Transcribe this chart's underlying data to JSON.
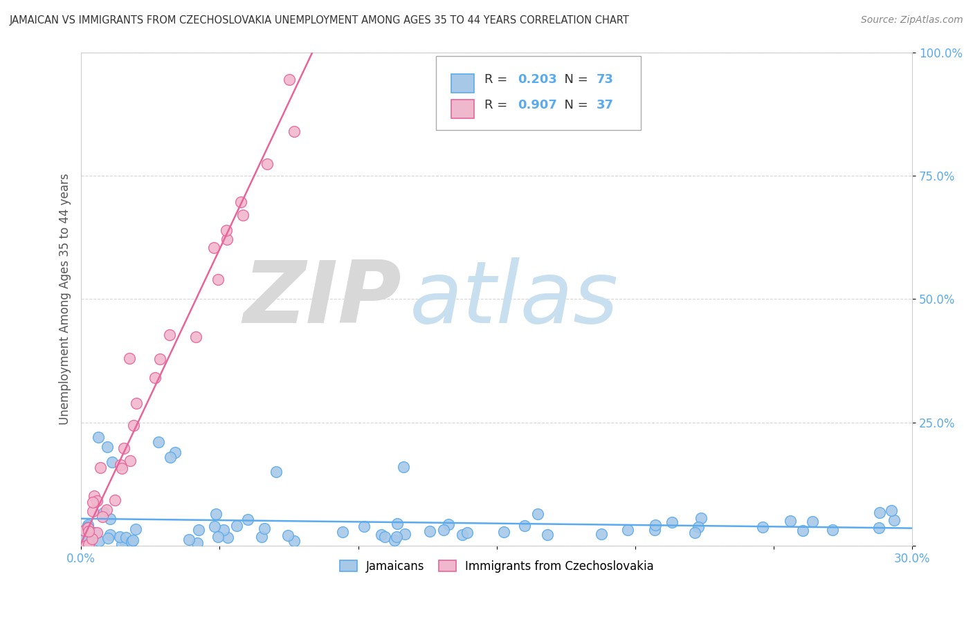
{
  "title": "JAMAICAN VS IMMIGRANTS FROM CZECHOSLOVAKIA UNEMPLOYMENT AMONG AGES 35 TO 44 YEARS CORRELATION CHART",
  "source": "Source: ZipAtlas.com",
  "ylabel": "Unemployment Among Ages 35 to 44 years",
  "x_min": 0.0,
  "x_max": 0.3,
  "y_min": 0.0,
  "y_max": 1.0,
  "jamaicans_R": 0.203,
  "jamaicans_N": 73,
  "czech_R": 0.907,
  "czech_N": 37,
  "jamaicans_marker_color": "#a8c8e8",
  "jamaicans_line_color": "#5aabee",
  "czech_marker_color": "#f0b8cc",
  "czech_line_color": "#e8649a",
  "watermark_ZIP_color": "#d8d8d8",
  "watermark_atlas_color": "#c8dff0",
  "legend_label_jamaicans": "Jamaicans",
  "legend_label_czech": "Immigrants from Czechoslovakia",
  "background_color": "#ffffff",
  "grid_color": "#cccccc",
  "tick_color": "#5aabee",
  "title_color": "#333333",
  "source_color": "#888888",
  "legend_text_color": "#333333"
}
